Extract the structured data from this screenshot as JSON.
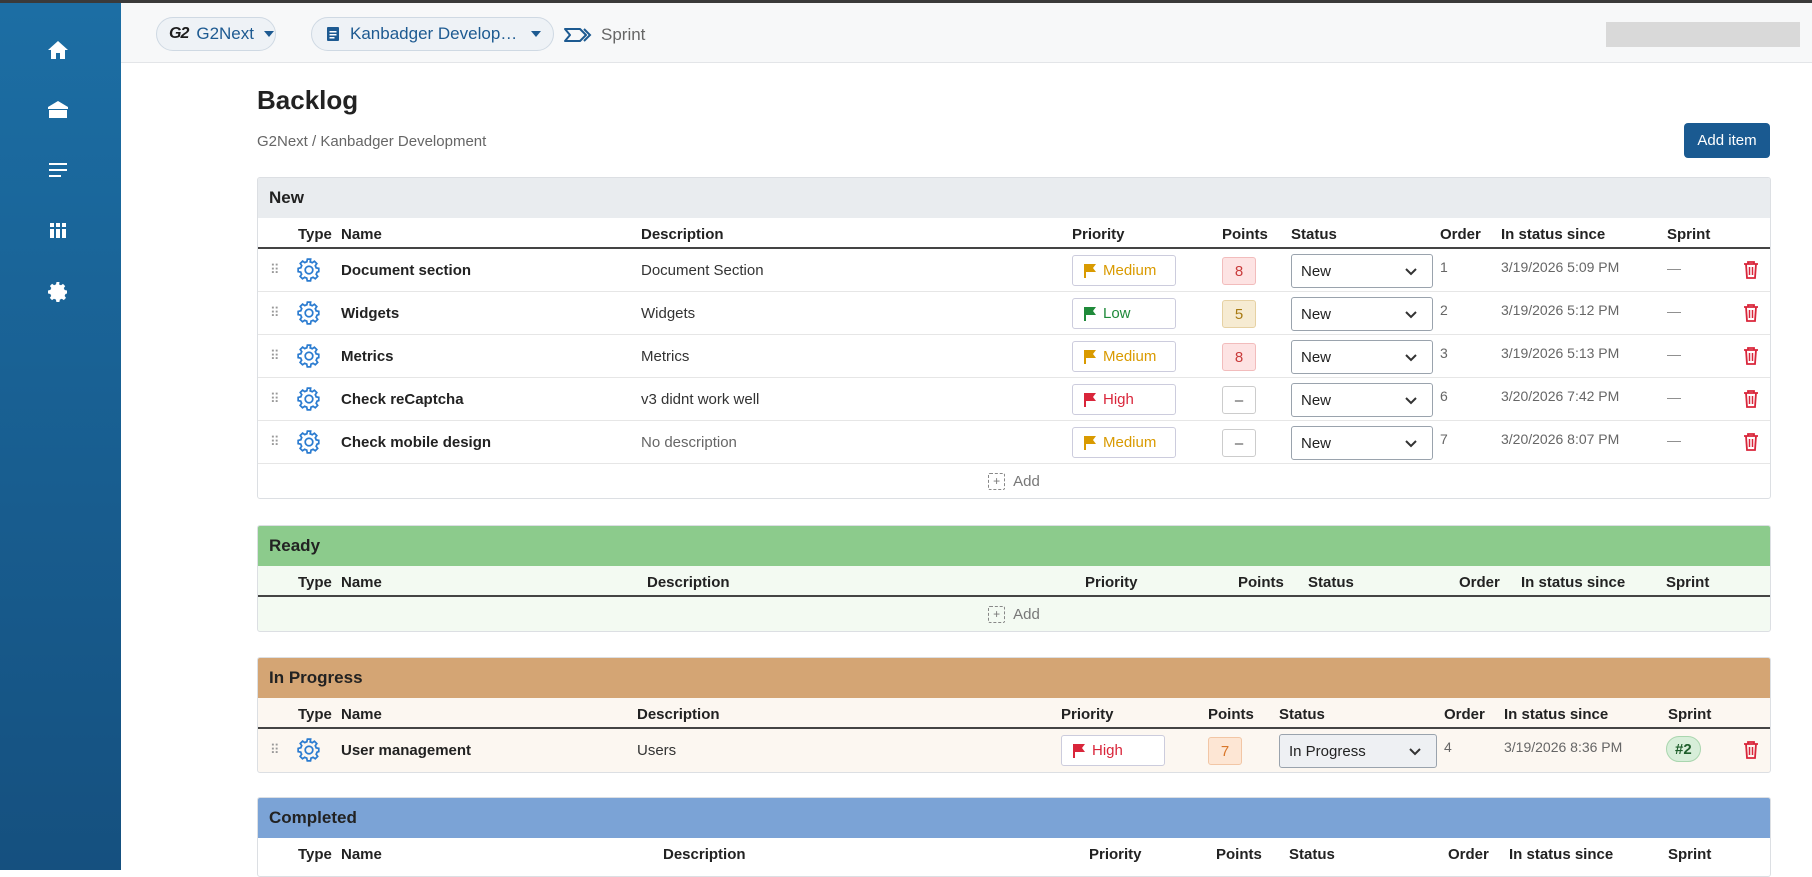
{
  "colors": {
    "sidebar": "#1c6ea4",
    "accent": "#1a5a91",
    "new_header": "#e9ecef",
    "ready_header": "#8ccb8c",
    "inprogress_header": "#d4a574",
    "completed_header": "#7ba3d6",
    "priority_medium": "#d99a00",
    "priority_low": "#1f8a3a",
    "priority_high": "#d9253a",
    "delete": "#d9253a"
  },
  "sidebar": {
    "items": [
      {
        "icon": "home-icon"
      },
      {
        "icon": "bank-icon"
      },
      {
        "icon": "list-icon"
      },
      {
        "icon": "board-icon"
      },
      {
        "icon": "gear-icon"
      }
    ]
  },
  "topbar": {
    "org_logo": "G2",
    "org_label": "G2Next",
    "separator": "/",
    "project_label": "Kanbadger Develop…",
    "sprint_label": "Sprint"
  },
  "page": {
    "title": "Backlog",
    "breadcrumb": "G2Next / Kanbadger Development",
    "add_item_label": "Add item"
  },
  "columns": {
    "type": "Type",
    "name": "Name",
    "description": "Description",
    "priority": "Priority",
    "points": "Points",
    "status": "Status",
    "order": "Order",
    "since": "In status since",
    "sprint": "Sprint"
  },
  "add_label": "Add",
  "sections": {
    "new": {
      "title": "New",
      "rows": [
        {
          "name": "Document section",
          "description": "Document Section",
          "priority": "Medium",
          "points": "8",
          "status": "New",
          "order": "1",
          "since": "3/19/2026 5:09 PM",
          "sprint": "—"
        },
        {
          "name": "Widgets",
          "description": "Widgets",
          "priority": "Low",
          "points": "5",
          "status": "New",
          "order": "2",
          "since": "3/19/2026 5:12 PM",
          "sprint": "—"
        },
        {
          "name": "Metrics",
          "description": "Metrics",
          "priority": "Medium",
          "points": "8",
          "status": "New",
          "order": "3",
          "since": "3/19/2026 5:13 PM",
          "sprint": "—"
        },
        {
          "name": "Check reCaptcha",
          "description": "v3 didnt work well",
          "priority": "High",
          "points": "–",
          "status": "New",
          "order": "6",
          "since": "3/20/2026 7:42 PM",
          "sprint": "—"
        },
        {
          "name": "Check mobile design",
          "description": "No description",
          "priority": "Medium",
          "points": "–",
          "status": "New",
          "order": "7",
          "since": "3/20/2026 8:07 PM",
          "sprint": "—"
        }
      ]
    },
    "ready": {
      "title": "Ready"
    },
    "inprogress": {
      "title": "In Progress",
      "rows": [
        {
          "name": "User management",
          "description": "Users",
          "priority": "High",
          "points": "7",
          "status": "In Progress",
          "order": "4",
          "since": "3/19/2026 8:36 PM",
          "sprint": "#2"
        }
      ]
    },
    "completed": {
      "title": "Completed"
    }
  }
}
